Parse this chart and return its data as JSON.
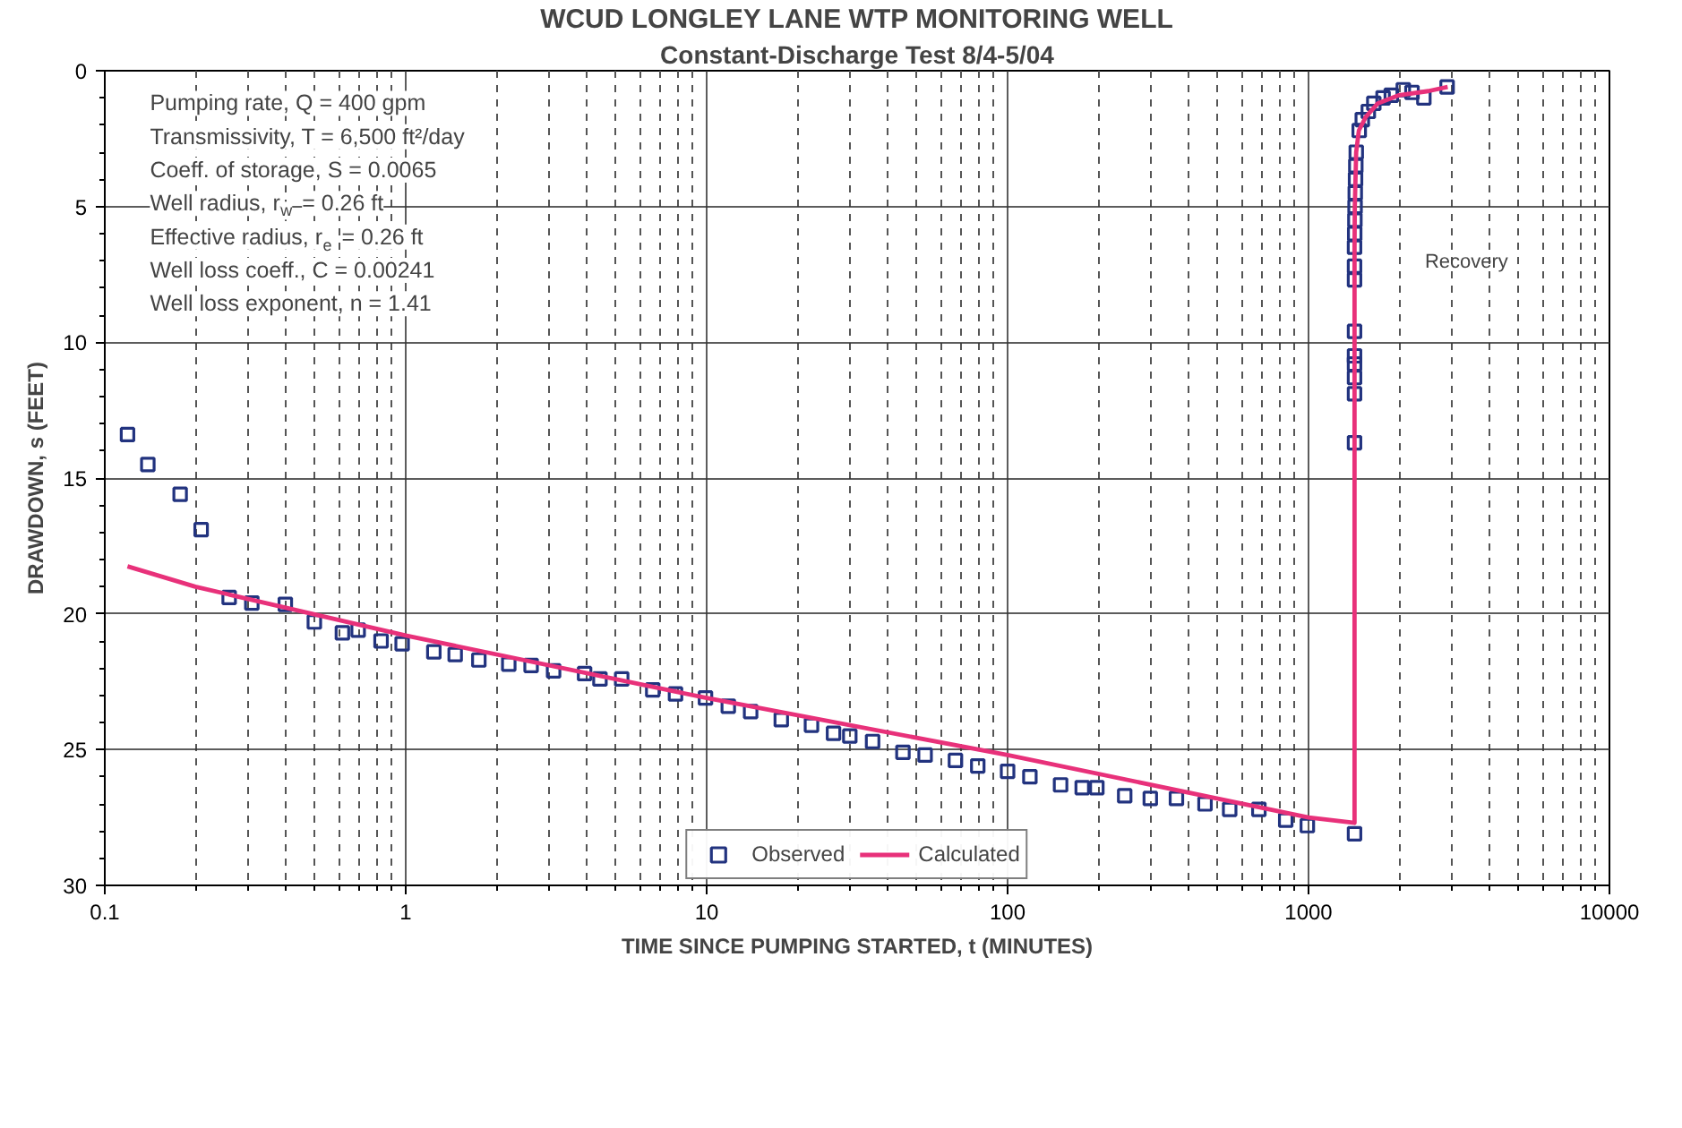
{
  "chart_data": {
    "type": "scatter",
    "title": "WCUD LONGLEY LANE WTP MONITORING WELL",
    "subtitle": "Constant-Discharge Test 8/4-5/04",
    "xlabel": "TIME SINCE PUMPING STARTED, t (MINUTES)",
    "ylabel": "DRAWDOWN, s (FEET)",
    "log": "x",
    "xlim": [
      0.1,
      10000
    ],
    "xticks": [
      0.1,
      1,
      10,
      100,
      1000,
      10000
    ],
    "ylim": [
      30,
      0
    ],
    "yticks": [
      0,
      5,
      10,
      15,
      20,
      25,
      30
    ],
    "grid": true,
    "legend": "bottom",
    "annotations": [
      "Pumping rate, Q = 400 gpm",
      "Transmissivity, T = 6,500 ft²/day",
      "Coeff. of storage, S = 0.0065",
      "Well radius, r$_{w}$ = 0.26 ft",
      "Effective radius, r$_{e}$ = 0.26 ft",
      "Well loss coeff., C = 0.00241",
      "Well loss exponent, n = 1.41",
      "Recovery"
    ],
    "series": [
      {
        "name": "Observed",
        "marker": "square",
        "color": "#22337f",
        "x": [
          0.119,
          0.139,
          0.178,
          0.209,
          0.259,
          0.308,
          0.398,
          0.497,
          0.616,
          0.695,
          0.828,
          0.973,
          1.24,
          1.46,
          1.75,
          2.2,
          2.61,
          3.1,
          3.93,
          4.42,
          5.22,
          6.62,
          7.88,
          9.91,
          11.8,
          14.0,
          17.7,
          22.3,
          26.4,
          29.9,
          35.6,
          44.9,
          53.2,
          67.1,
          79.6,
          100,
          118.6,
          150,
          177,
          198,
          245,
          298,
          364,
          453,
          547,
          684,
          840,
          991,
          1422,
          1422,
          1422,
          1422,
          1422,
          1422,
          1422,
          1422,
          1422,
          1422,
          1424,
          1426,
          1428,
          1430,
          1433,
          1436,
          1441,
          1474,
          1509,
          1580,
          1648,
          1769,
          1884,
          2065,
          2207,
          2417,
          2888
        ],
        "values": [
          13.4,
          14.5,
          15.6,
          16.9,
          19.4,
          19.6,
          19.65,
          20.3,
          20.7,
          20.6,
          21.0,
          21.1,
          21.4,
          21.5,
          21.7,
          21.85,
          21.9,
          22.1,
          22.2,
          22.4,
          22.4,
          22.8,
          22.95,
          23.1,
          23.4,
          23.6,
          23.9,
          24.1,
          24.4,
          24.5,
          24.7,
          25.1,
          25.2,
          25.4,
          25.6,
          25.8,
          26.0,
          26.3,
          26.4,
          26.4,
          26.7,
          26.8,
          26.8,
          27.0,
          27.2,
          27.2,
          27.6,
          27.8,
          28.1,
          13.7,
          11.9,
          11.3,
          10.8,
          10.5,
          9.6,
          7.7,
          7.2,
          6.5,
          6.0,
          5.5,
          5.0,
          4.5,
          4.0,
          3.5,
          3.0,
          2.2,
          1.8,
          1.5,
          1.2,
          1.0,
          0.9,
          0.7,
          0.8,
          1.0,
          0.6
        ]
      },
      {
        "name": "Calculated",
        "type": "line",
        "color": "#e8317a",
        "x": [
          0.119,
          0.2,
          1,
          10,
          100,
          1000,
          1422,
          1422,
          1425,
          1440,
          1470,
          1550,
          1700,
          2000,
          2500,
          2900
        ],
        "values": [
          18.25,
          19.0,
          20.8,
          23.1,
          25.2,
          27.5,
          27.7,
          6.5,
          5.0,
          3.0,
          2.2,
          1.7,
          1.2,
          0.9,
          0.75,
          0.6
        ]
      }
    ]
  }
}
